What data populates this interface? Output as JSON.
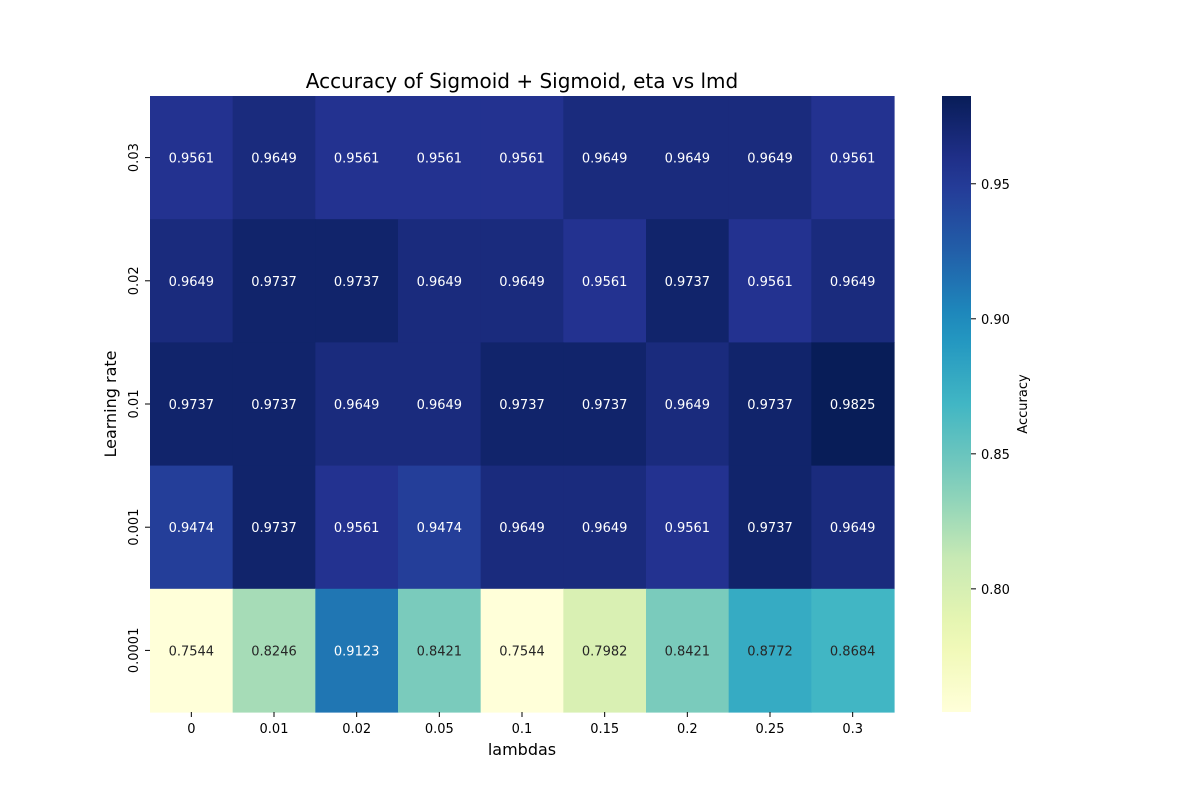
{
  "chart_data": {
    "type": "heatmap",
    "title": "Accuracy of Sigmoid + Sigmoid, eta vs lmd",
    "xlabel": "lambdas",
    "ylabel": "Learning rate",
    "x": [
      "0",
      "0.01",
      "0.02",
      "0.05",
      "0.1",
      "0.15",
      "0.2",
      "0.25",
      "0.3"
    ],
    "y": [
      "0.03",
      "0.02",
      "0.01",
      "0.001",
      "0.0001"
    ],
    "values": [
      [
        0.9561,
        0.9649,
        0.9561,
        0.9561,
        0.9561,
        0.9649,
        0.9649,
        0.9649,
        0.9561
      ],
      [
        0.9649,
        0.9737,
        0.9737,
        0.9649,
        0.9649,
        0.9561,
        0.9737,
        0.9561,
        0.9649
      ],
      [
        0.9737,
        0.9737,
        0.9649,
        0.9649,
        0.9737,
        0.9737,
        0.9649,
        0.9737,
        0.9825
      ],
      [
        0.9474,
        0.9737,
        0.9561,
        0.9474,
        0.9649,
        0.9649,
        0.9561,
        0.9737,
        0.9649
      ],
      [
        0.7544,
        0.8246,
        0.9123,
        0.8421,
        0.7544,
        0.7982,
        0.8421,
        0.8772,
        0.8684
      ]
    ],
    "value_labels": [
      [
        "0.9561",
        "0.9649",
        "0.9561",
        "0.9561",
        "0.9561",
        "0.9649",
        "0.9649",
        "0.9649",
        "0.9561"
      ],
      [
        "0.9649",
        "0.9737",
        "0.9737",
        "0.9649",
        "0.9649",
        "0.9561",
        "0.9737",
        "0.9561",
        "0.9649"
      ],
      [
        "0.9737",
        "0.9737",
        "0.9649",
        "0.9649",
        "0.9737",
        "0.9737",
        "0.9649",
        "0.9737",
        "0.9825"
      ],
      [
        "0.9474",
        "0.9737",
        "0.9561",
        "0.9474",
        "0.9649",
        "0.9649",
        "0.9561",
        "0.9737",
        "0.9649"
      ],
      [
        "0.7544",
        "0.8246",
        "0.9123",
        "0.8421",
        "0.7544",
        "0.7982",
        "0.8421",
        "0.8772",
        "0.8684"
      ]
    ],
    "colorscale": "YlGnBu",
    "colorbar": {
      "label": "Accuracy",
      "range": [
        0.7544,
        0.9825
      ],
      "ticks": [
        0.8,
        0.85,
        0.9,
        0.95
      ],
      "tick_labels": [
        "0.80",
        "0.85",
        "0.90",
        "0.95"
      ]
    },
    "grid": false,
    "legend": "none"
  }
}
